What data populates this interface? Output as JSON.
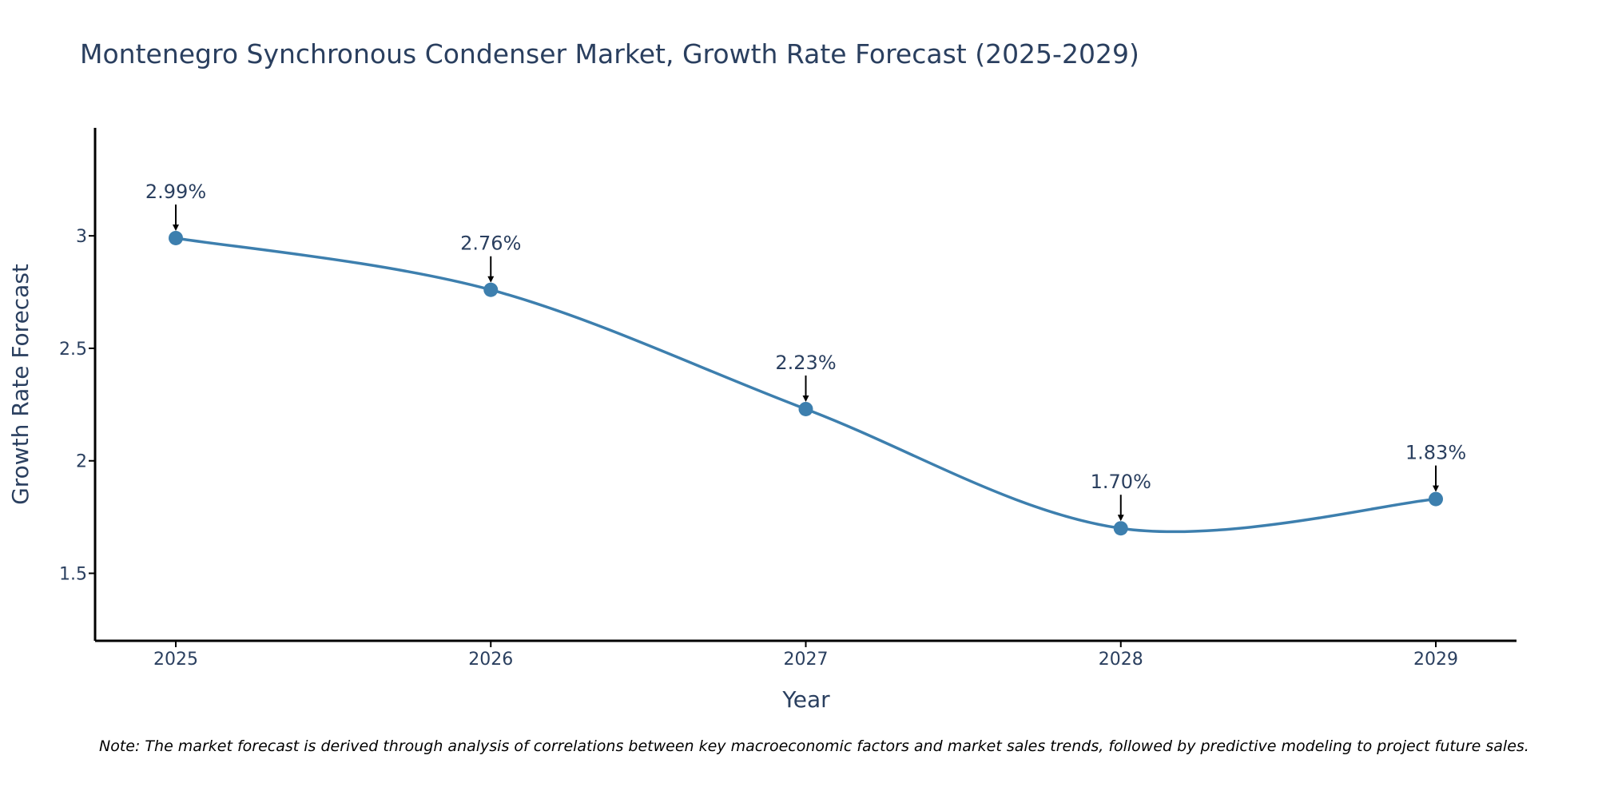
{
  "chart_data": {
    "type": "line",
    "title": "Montenegro Synchronous Condenser Market, Growth Rate Forecast (2025-2029)",
    "xlabel": "Year",
    "ylabel": "Growth Rate Forecast",
    "categories": [
      "2025",
      "2026",
      "2027",
      "2028",
      "2029"
    ],
    "series": [
      {
        "name": "Growth Rate Forecast",
        "values": [
          2.99,
          2.76,
          2.23,
          1.7,
          1.83
        ],
        "labels": [
          "2.99%",
          "2.76%",
          "2.23%",
          "1.70%",
          "1.83%"
        ]
      }
    ],
    "yticks": [
      {
        "value": 1.5,
        "label": "1.5"
      },
      {
        "value": 2,
        "label": "2"
      },
      {
        "value": 2.5,
        "label": "2.5"
      },
      {
        "value": 3,
        "label": "3"
      }
    ],
    "ylim": [
      1.2,
      3.48
    ],
    "grid": false,
    "line_color": "#3d7fae",
    "marker_color": "#3d7fae",
    "annotation_arrow_color": "#000000",
    "note": "Note: The market forecast is derived through analysis of correlations between key macroeconomic factors and market sales trends, followed by predictive modeling to project future sales."
  }
}
